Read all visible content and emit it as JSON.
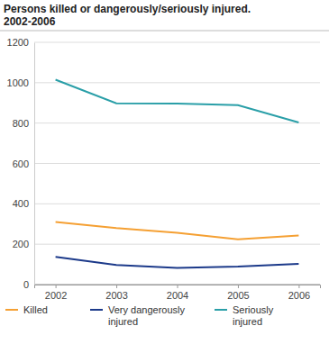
{
  "chart_data": {
    "type": "line",
    "title": "Persons killed or dangerously/seriously injured.\n2002-2006",
    "categories": [
      "2002",
      "2003",
      "2004",
      "2005",
      "2006"
    ],
    "series": [
      {
        "name": "Killed",
        "color": "#f5a033",
        "values": [
          310,
          280,
          257,
          224,
          243
        ]
      },
      {
        "name": "Very dangerously injured",
        "color": "#1c3a8a",
        "values": [
          137,
          97,
          83,
          89,
          103
        ]
      },
      {
        "name": "Seriously injured",
        "color": "#2a9fa8",
        "values": [
          1015,
          898,
          897,
          889,
          803
        ]
      }
    ],
    "ylim": [
      0,
      1200
    ],
    "yticks": [
      0,
      200,
      400,
      600,
      800,
      1000,
      1200
    ],
    "grid": true,
    "legend": "bottom"
  }
}
